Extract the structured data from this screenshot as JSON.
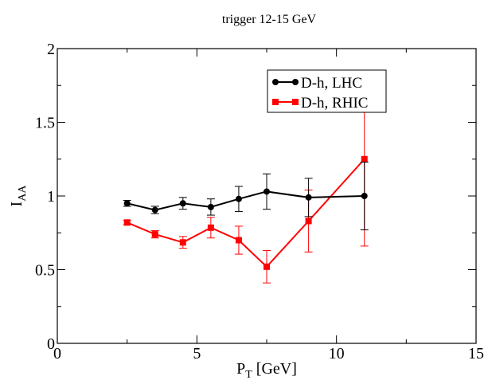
{
  "chart_data": {
    "type": "line",
    "title": "trigger 12-15 GeV",
    "xlabel": "P",
    "xlabel_sub": "T",
    "xlabel_unit": " [GeV]",
    "ylabel": "I",
    "ylabel_sub": "AA",
    "xlim": [
      0,
      15
    ],
    "ylim": [
      0,
      2
    ],
    "xticks": [
      0,
      5,
      10,
      15
    ],
    "yticks": [
      0,
      0.5,
      1,
      1.5,
      2
    ],
    "xtick_labels": [
      "0",
      "5",
      "10",
      "15"
    ],
    "ytick_labels": [
      "0",
      "0.5",
      "1",
      "1.5",
      "2"
    ],
    "grid": false,
    "legend_position": "top-right",
    "series": [
      {
        "name": "D-h, LHC",
        "color": "#000000",
        "marker": "circle",
        "x": [
          2.5,
          3.5,
          4.5,
          5.5,
          6.5,
          7.5,
          9.0,
          11.0
        ],
        "y": [
          0.95,
          0.905,
          0.95,
          0.925,
          0.98,
          1.03,
          0.99,
          1.0
        ],
        "err": [
          0.02,
          0.025,
          0.04,
          0.055,
          0.085,
          0.12,
          0.13,
          0.23
        ]
      },
      {
        "name": "D-h, RHIC",
        "color": "#ff0000",
        "marker": "square",
        "x": [
          2.5,
          3.5,
          4.5,
          5.5,
          6.5,
          7.5,
          9.0,
          11.0
        ],
        "y": [
          0.82,
          0.74,
          0.685,
          0.785,
          0.7,
          0.52,
          0.83,
          1.25
        ],
        "err": [
          0.015,
          0.025,
          0.04,
          0.07,
          0.095,
          0.11,
          0.21,
          0.59
        ]
      }
    ]
  }
}
